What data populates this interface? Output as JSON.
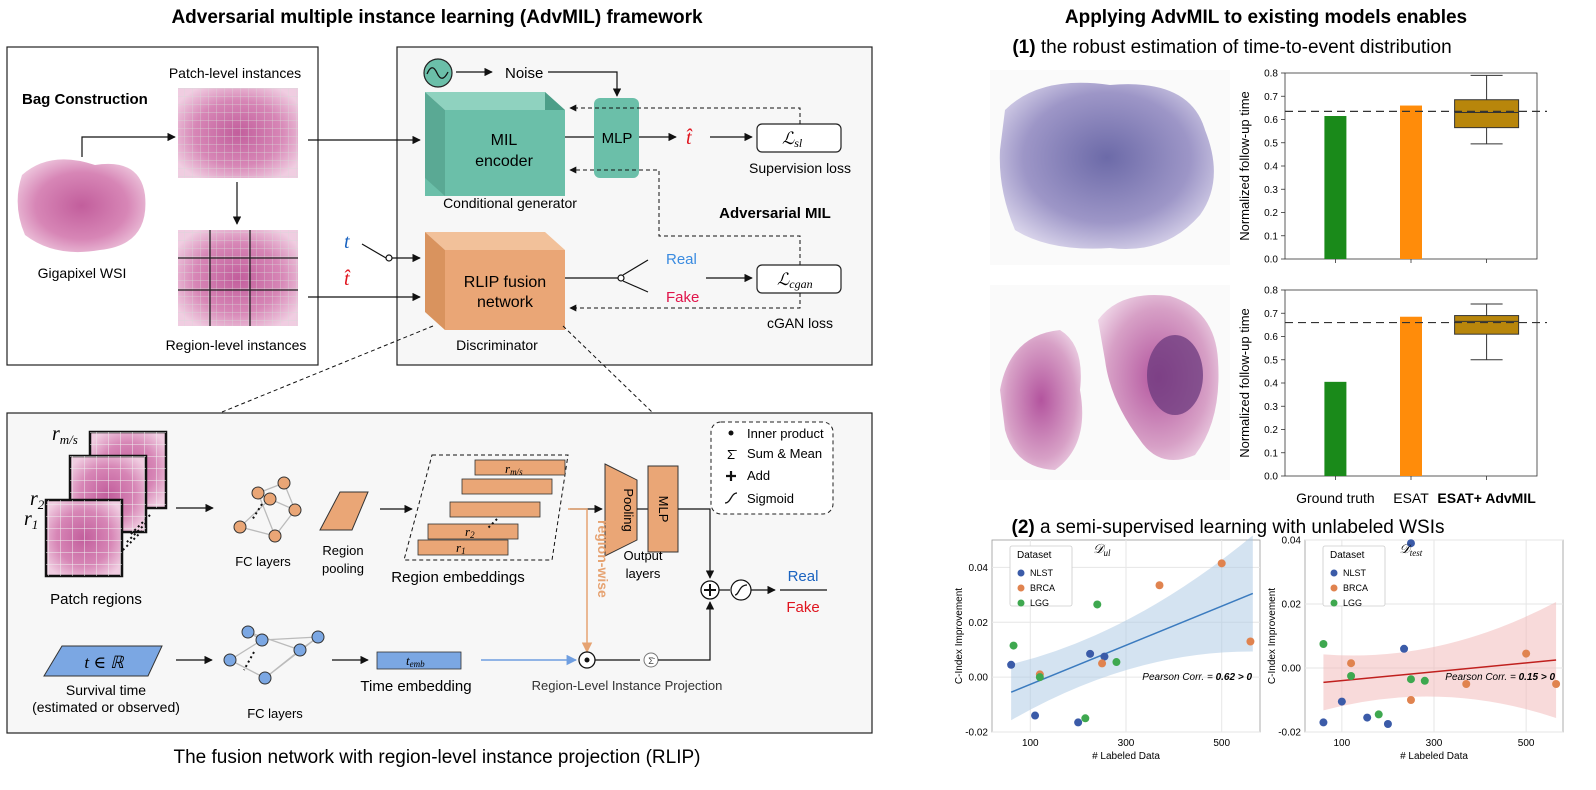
{
  "left": {
    "title": "Adversarial multiple instance learning (AdvMIL) framework",
    "bag_construction": "Bag Construction",
    "patch_level": "Patch-level instances",
    "gigapixel": "Gigapixel WSI",
    "region_level": "Region-level instances",
    "noise": "Noise",
    "mil_encoder_1": "MIL",
    "mil_encoder_2": "encoder",
    "mlp": "MLP",
    "t_hat": "t̂",
    "l_sl_main": "ℒ",
    "l_sl_sub": "sl",
    "supervision_loss": "Supervision loss",
    "conditional_generator": "Conditional generator",
    "adversarial_mil": "Adversarial MIL",
    "t": "t",
    "rlip_1": "RLIP fusion",
    "rlip_2": "network",
    "real": "Real",
    "fake": "Fake",
    "l_cgan_main": "ℒ",
    "l_cgan_sub": "cgan",
    "cgan_loss": "cGAN loss",
    "discriminator": "Discriminator",
    "bottom_caption": "The fusion network with region-level instance projection (RLIP)",
    "rlip": {
      "r_ms": "r",
      "r_ms_sub": "m/s",
      "r2": "r",
      "r2_sub": "2",
      "r1": "r",
      "r1_sub": "1",
      "patch_regions": "Patch regions",
      "fc_layers": "FC layers",
      "region_pooling_1": "Region",
      "region_pooling_2": "pooling",
      "region_embeddings": "Region embeddings",
      "emb_rms": "r",
      "emb_rms_sub": "m/s",
      "emb_r2": "r",
      "emb_r2_sub": "2",
      "emb_r1": "r",
      "emb_r1_sub": "1",
      "pooling": "Pooling",
      "mlp": "MLP",
      "output_layers_1": "Output",
      "output_layers_2": "layers",
      "region_wise": "region-wise",
      "real": "Real",
      "fake": "Fake",
      "survival_t": "t ∈ ℝ",
      "survival_time_1": "Survival time",
      "survival_time_2": "(estimated or observed)",
      "fc_layers_2": "FC layers",
      "t_emb": "t",
      "t_emb_sub": "emb",
      "time_embedding": "Time embedding",
      "rlip_proj": "Region-Level Instance Projection",
      "legend": {
        "inner_product": "Inner product",
        "sum_mean": "Sum & Mean",
        "add": "Add",
        "sigmoid": "Sigmoid"
      }
    }
  },
  "right": {
    "title": "Applying AdvMIL to existing models enables",
    "sub1_num": "(1)",
    "sub1_text": "the robust estimation of time-to-event distribution",
    "sub2_num": "(2)",
    "sub2_text": "a semi-supervised learning with unlabeled WSIs"
  },
  "chart_data": [
    {
      "type": "bar",
      "ylabel": "Normalized follow-up time",
      "categories": [
        "Ground truth",
        "ESAT",
        "ESAT+ AdvMIL"
      ],
      "values": [
        0.615,
        0.66,
        null
      ],
      "box": {
        "min": 0.495,
        "q1": 0.565,
        "median": 0.63,
        "q3": 0.685,
        "max": 0.79
      },
      "reference_line": 0.635,
      "ylim": [
        0,
        0.8
      ],
      "yticks": [
        "0.0",
        "0.1",
        "0.2",
        "0.3",
        "0.4",
        "0.5",
        "0.6",
        "0.7",
        "0.8"
      ],
      "colors": [
        "#1a8a1a",
        "#ff8c0a",
        "#b8860b"
      ]
    },
    {
      "type": "bar",
      "ylabel": "Normalized follow-up time",
      "categories": [
        "Ground truth",
        "ESAT",
        "ESAT+ AdvMIL"
      ],
      "values": [
        0.405,
        0.685,
        null
      ],
      "box": {
        "min": 0.5,
        "q1": 0.61,
        "median": 0.665,
        "q3": 0.69,
        "max": 0.74
      },
      "reference_line": 0.66,
      "ylim": [
        0,
        0.8
      ],
      "yticks": [
        "0.0",
        "0.1",
        "0.2",
        "0.3",
        "0.4",
        "0.5",
        "0.6",
        "0.7",
        "0.8"
      ],
      "colors": [
        "#1a8a1a",
        "#ff8c0a",
        "#b8860b"
      ]
    },
    {
      "type": "scatter",
      "title": "𝒟",
      "title_sub": "ul",
      "xlabel": "# Labeled Data",
      "ylabel": "C-Index Improvement",
      "xlim": [
        20,
        580
      ],
      "ylim": [
        -0.02,
        0.05
      ],
      "xticks": [
        100,
        300,
        500
      ],
      "yticks": [
        -0.02,
        0.0,
        0.02,
        0.04
      ],
      "ytick_labels": [
        "-0.02",
        "0.00",
        "0.02",
        "0.04"
      ],
      "legend_title": "Dataset",
      "legend_loc": "top-left",
      "series": [
        {
          "name": "NLST",
          "color": "#3b5ba8",
          "x": [
            60,
            110,
            225,
            255,
            200
          ],
          "y": [
            0.0045,
            -0.014,
            0.0085,
            0.0075,
            -0.0165
          ]
        },
        {
          "name": "BRCA",
          "color": "#e0834f",
          "x": [
            120,
            250,
            370,
            500,
            560
          ],
          "y": [
            0.001,
            0.005,
            0.0335,
            0.0415,
            0.013
          ]
        },
        {
          "name": "LGG",
          "color": "#3ea84f",
          "x": [
            65,
            120,
            240,
            280,
            215
          ],
          "y": [
            0.0115,
            0.0,
            0.0265,
            0.0055,
            -0.015
          ]
        }
      ],
      "trend": {
        "x": [
          60,
          565
        ],
        "y": [
          -0.0055,
          0.0305
        ],
        "color": "#3b7bbf"
      },
      "annotation": "Pearson Corr. = 0.62 > 0"
    },
    {
      "type": "scatter",
      "title": "𝒟",
      "title_sub": "test",
      "xlabel": "# Labeled Data",
      "ylabel": "C-Index Improvement",
      "xlim": [
        20,
        580
      ],
      "ylim": [
        -0.02,
        0.04
      ],
      "xticks": [
        100,
        300,
        500
      ],
      "yticks": [
        -0.02,
        0.0,
        0.02,
        0.04
      ],
      "ytick_labels": [
        "-0.02",
        "0.00",
        "0.02",
        "0.04"
      ],
      "legend_title": "Dataset",
      "legend_loc": "top-left",
      "series": [
        {
          "name": "NLST",
          "color": "#3b5ba8",
          "x": [
            60,
            100,
            200,
            235,
            250,
            155
          ],
          "y": [
            -0.017,
            -0.0105,
            -0.0175,
            0.006,
            0.039,
            -0.0155
          ]
        },
        {
          "name": "BRCA",
          "color": "#e0834f",
          "x": [
            120,
            250,
            370,
            500,
            565
          ],
          "y": [
            0.0015,
            -0.01,
            -0.005,
            0.0045,
            -0.005
          ]
        },
        {
          "name": "LGG",
          "color": "#3ea84f",
          "x": [
            60,
            120,
            180,
            250,
            280
          ],
          "y": [
            0.0075,
            -0.0025,
            -0.0145,
            -0.0035,
            -0.004
          ]
        }
      ],
      "trend": {
        "x": [
          60,
          565
        ],
        "y": [
          -0.0045,
          0.0025
        ],
        "color": "#c0201e"
      },
      "annotation": "Pearson Corr. = 0.15 > 0"
    }
  ]
}
